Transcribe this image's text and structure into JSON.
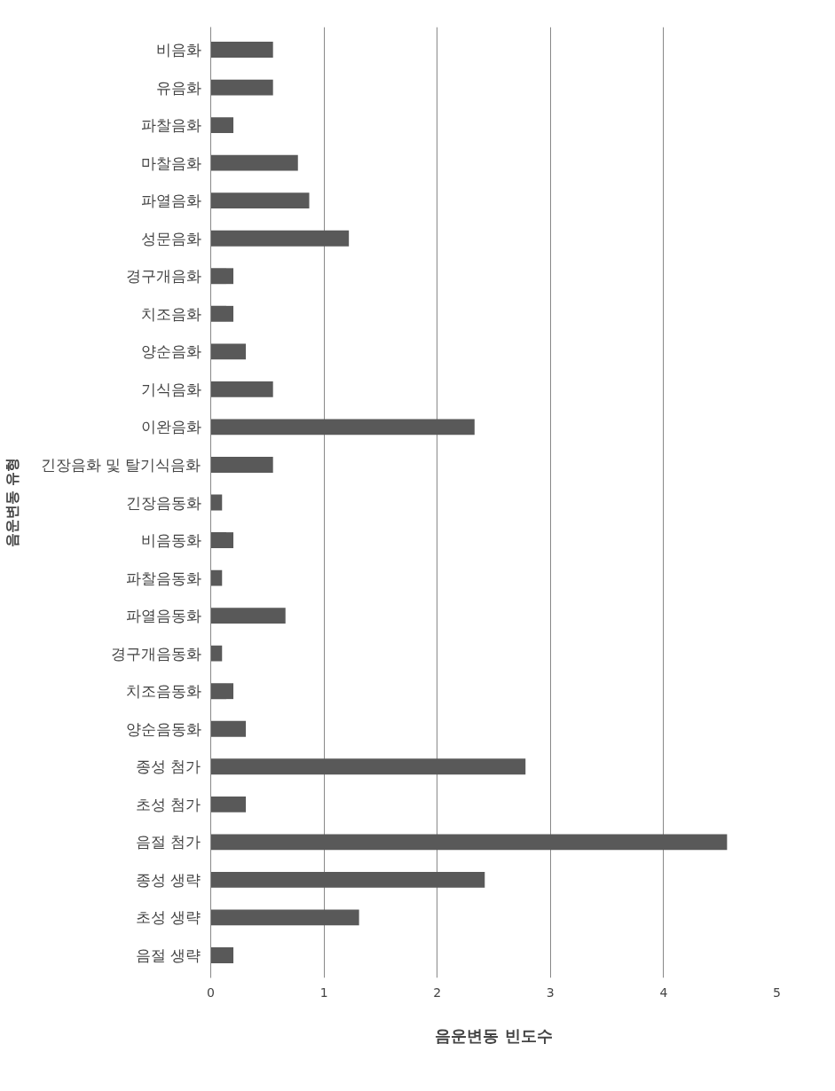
{
  "chart_data": {
    "type": "bar",
    "orientation": "horizontal",
    "xlabel": "음운변동 빈도수",
    "ylabel": "음운변동 유형",
    "categories": [
      "비음화",
      "유음화",
      "파찰음화",
      "마찰음화",
      "파열음화",
      "성문음화",
      "경구개음화",
      "치조음화",
      "양순음화",
      "기식음화",
      "이완음화",
      "긴장음화 및 탈기식음화",
      "긴장음동화",
      "비음동화",
      "파찰음동화",
      "파열음동화",
      "경구개음동화",
      "치조음동화",
      "양순음동화",
      "종성 첨가",
      "초성 첨가",
      "음절 첨가",
      "종성 생략",
      "초성 생략",
      "음절 생략"
    ],
    "values": [
      0.55,
      0.55,
      0.2,
      0.77,
      0.87,
      1.22,
      0.2,
      0.2,
      0.31,
      0.55,
      2.33,
      0.55,
      0.1,
      0.2,
      0.1,
      0.66,
      0.1,
      0.2,
      0.31,
      2.78,
      0.31,
      4.56,
      2.42,
      1.31,
      0.2
    ],
    "color": "#595959",
    "xlim": [
      0,
      5
    ],
    "xticks": [
      0,
      1,
      2,
      3,
      4,
      5
    ],
    "grid": "x"
  }
}
